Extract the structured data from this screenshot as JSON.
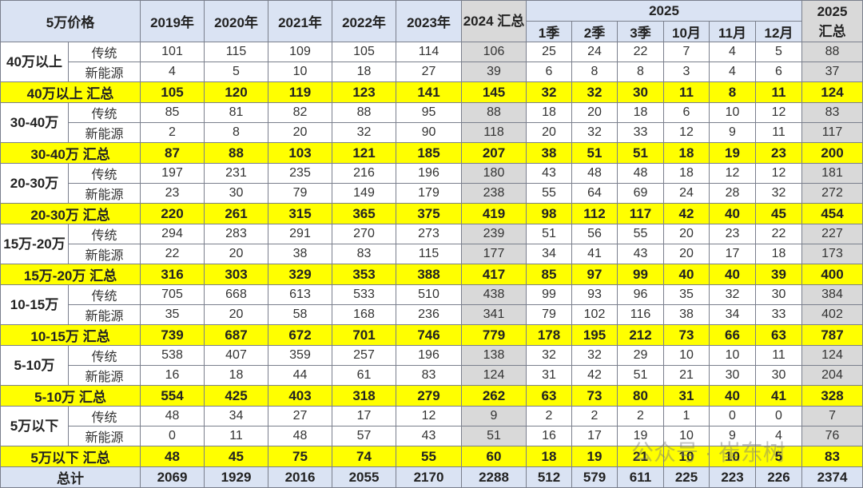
{
  "header": {
    "corner": "5万价格",
    "years": [
      "2019年",
      "2020年",
      "2021年",
      "2022年",
      "2023年"
    ],
    "y2024": "2024 汇总",
    "y2025": "2025",
    "periods": [
      "1季",
      "2季",
      "3季",
      "10月",
      "11月",
      "12月"
    ],
    "y2025_total": "2025 汇总"
  },
  "groups": [
    {
      "label": "40万以上",
      "rows": [
        {
          "type": "传统",
          "values": [
            101,
            115,
            109,
            105,
            114,
            106,
            25,
            24,
            22,
            7,
            4,
            5,
            88
          ]
        },
        {
          "type": "新能源",
          "values": [
            4,
            5,
            10,
            18,
            27,
            39,
            6,
            8,
            8,
            3,
            4,
            6,
            37
          ]
        }
      ],
      "summary_label": "40万以上 汇总",
      "summary": [
        105,
        120,
        119,
        123,
        141,
        145,
        32,
        32,
        30,
        11,
        8,
        11,
        124
      ]
    },
    {
      "label": "30-40万",
      "rows": [
        {
          "type": "传统",
          "values": [
            85,
            81,
            82,
            88,
            95,
            88,
            18,
            20,
            18,
            6,
            10,
            12,
            83
          ]
        },
        {
          "type": "新能源",
          "values": [
            2,
            8,
            20,
            32,
            90,
            118,
            20,
            32,
            33,
            12,
            9,
            11,
            117
          ]
        }
      ],
      "summary_label": "30-40万 汇总",
      "summary": [
        87,
        88,
        103,
        121,
        185,
        207,
        38,
        51,
        51,
        18,
        19,
        23,
        200
      ]
    },
    {
      "label": "20-30万",
      "rows": [
        {
          "type": "传统",
          "values": [
            197,
            231,
            235,
            216,
            196,
            180,
            43,
            48,
            48,
            18,
            12,
            12,
            181
          ]
        },
        {
          "type": "新能源",
          "values": [
            23,
            30,
            79,
            149,
            179,
            238,
            55,
            64,
            69,
            24,
            28,
            32,
            272
          ]
        }
      ],
      "summary_label": "20-30万 汇总",
      "summary": [
        220,
        261,
        315,
        365,
        375,
        419,
        98,
        112,
        117,
        42,
        40,
        45,
        454
      ]
    },
    {
      "label": "15万-20万",
      "rows": [
        {
          "type": "传统",
          "values": [
            294,
            283,
            291,
            270,
            273,
            239,
            51,
            56,
            55,
            20,
            23,
            22,
            227
          ]
        },
        {
          "type": "新能源",
          "values": [
            22,
            20,
            38,
            83,
            115,
            177,
            34,
            41,
            43,
            20,
            17,
            18,
            173
          ]
        }
      ],
      "summary_label": "15万-20万 汇总",
      "summary": [
        316,
        303,
        329,
        353,
        388,
        417,
        85,
        97,
        99,
        40,
        40,
        39,
        400
      ]
    },
    {
      "label": "10-15万",
      "rows": [
        {
          "type": "传统",
          "values": [
            705,
            668,
            613,
            533,
            510,
            438,
            99,
            93,
            96,
            35,
            32,
            30,
            384
          ]
        },
        {
          "type": "新能源",
          "values": [
            35,
            20,
            58,
            168,
            236,
            341,
            79,
            102,
            116,
            38,
            34,
            33,
            402
          ]
        }
      ],
      "summary_label": "10-15万 汇总",
      "summary": [
        739,
        687,
        672,
        701,
        746,
        779,
        178,
        195,
        212,
        73,
        66,
        63,
        787
      ]
    },
    {
      "label": "5-10万",
      "rows": [
        {
          "type": "传统",
          "values": [
            538,
            407,
            359,
            257,
            196,
            138,
            32,
            32,
            29,
            10,
            10,
            11,
            124
          ]
        },
        {
          "type": "新能源",
          "values": [
            16,
            18,
            44,
            61,
            83,
            124,
            31,
            42,
            51,
            21,
            30,
            30,
            204
          ]
        }
      ],
      "summary_label": "5-10万 汇总",
      "summary": [
        554,
        425,
        403,
        318,
        279,
        262,
        63,
        73,
        80,
        31,
        40,
        41,
        328
      ]
    },
    {
      "label": "5万以下",
      "rows": [
        {
          "type": "传统",
          "values": [
            48,
            34,
            27,
            17,
            12,
            9,
            2,
            2,
            2,
            1,
            0,
            0,
            7
          ]
        },
        {
          "type": "新能源",
          "values": [
            0,
            11,
            48,
            57,
            43,
            51,
            16,
            17,
            19,
            10,
            9,
            4,
            76
          ]
        }
      ],
      "summary_label": "5万以下 汇总",
      "summary": [
        48,
        45,
        75,
        74,
        55,
        60,
        18,
        19,
        21,
        10,
        10,
        5,
        83
      ]
    }
  ],
  "total": {
    "label": "总计",
    "values": [
      2069,
      1929,
      2016,
      2055,
      2170,
      2288,
      512,
      579,
      611,
      225,
      223,
      226,
      2374
    ]
  },
  "watermark": "公众号 · 崔东树",
  "colors": {
    "header": "#dae3f3",
    "summary": "#ffff00",
    "highlight": "#d9d9d9"
  }
}
